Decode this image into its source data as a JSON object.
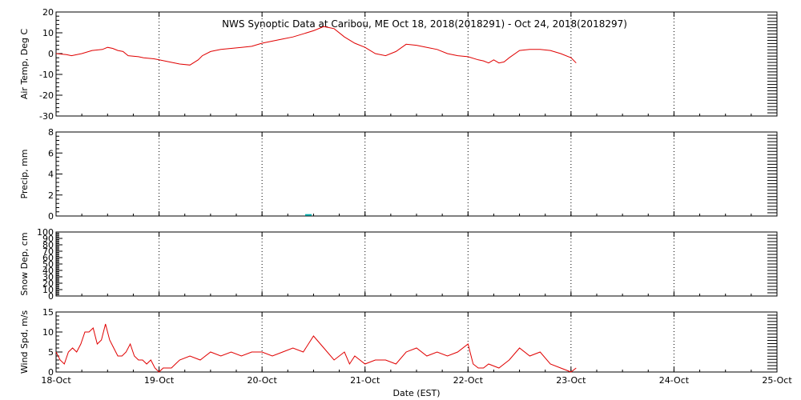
{
  "title": "NWS Synoptic Data at Caribou, ME   Oct 18, 2018(2018291) - Oct 24, 2018(2018297)",
  "xlabel": "Date (EST)",
  "x_ticks": [
    "18-Oct",
    "19-Oct",
    "20-Oct",
    "21-Oct",
    "22-Oct",
    "23-Oct",
    "24-Oct",
    "25-Oct"
  ],
  "colors": {
    "series": "#e00000",
    "precip": "#00b0b0"
  },
  "chart_data": [
    {
      "type": "line",
      "ylabel": "Air Temp, Deg C",
      "ylim": [
        -30,
        20
      ],
      "yticks": [
        -30,
        -20,
        -10,
        0,
        10,
        20
      ],
      "xlim": [
        0,
        7
      ],
      "grid": true,
      "series": [
        {
          "x": [
            0.0,
            0.1,
            0.15,
            0.25,
            0.35,
            0.45,
            0.5,
            0.55,
            0.6,
            0.65,
            0.7,
            0.8,
            0.85,
            0.95,
            1.0,
            1.1,
            1.2,
            1.3,
            1.38,
            1.42,
            1.5,
            1.6,
            1.7,
            1.8,
            1.9,
            2.0,
            2.1,
            2.2,
            2.3,
            2.4,
            2.5,
            2.6,
            2.7,
            2.8,
            2.9,
            3.0,
            3.1,
            3.2,
            3.3,
            3.4,
            3.5,
            3.6,
            3.7,
            3.8,
            3.9,
            4.0,
            4.1,
            4.15,
            4.2,
            4.25,
            4.3,
            4.35,
            4.4,
            4.5,
            4.6,
            4.7,
            4.8,
            4.9,
            5.0,
            5.05
          ],
          "y": [
            0,
            -0.5,
            -1,
            0,
            1.5,
            2,
            3,
            2.5,
            1.5,
            1,
            -1,
            -1.5,
            -2,
            -2.5,
            -3,
            -4,
            -5,
            -5.5,
            -3,
            -1,
            1,
            2,
            2.5,
            3,
            3.5,
            5,
            6,
            7,
            8,
            9.5,
            11,
            13,
            12,
            8,
            5,
            3,
            0,
            -1,
            1,
            4.5,
            4,
            3,
            2,
            0,
            -1,
            -1.5,
            -3,
            -3.5,
            -4.5,
            -3,
            -4.5,
            -4,
            -2,
            1.5,
            2,
            2,
            1.5,
            0,
            -2,
            -4.5
          ]
        }
      ]
    },
    {
      "type": "bar",
      "ylabel": "Precip, mm",
      "ylim": [
        0,
        8
      ],
      "yticks": [
        0,
        2,
        4,
        6,
        8
      ],
      "xlim": [
        0,
        7
      ],
      "grid": true,
      "series": [
        {
          "x": [
            2.45
          ],
          "y": [
            0.1
          ]
        }
      ]
    },
    {
      "type": "line",
      "ylabel": "Snow Dep, cm",
      "ylim": [
        0,
        100
      ],
      "yticks": [
        0,
        10,
        20,
        30,
        40,
        50,
        60,
        70,
        80,
        90,
        100
      ],
      "xlim": [
        0,
        7
      ],
      "grid": true,
      "series": []
    },
    {
      "type": "line",
      "ylabel": "Wind Spd, m/s",
      "ylim": [
        0,
        15
      ],
      "yticks": [
        0,
        5,
        10,
        15
      ],
      "xlim": [
        0,
        7
      ],
      "grid": true,
      "series": [
        {
          "x": [
            0.0,
            0.04,
            0.08,
            0.12,
            0.16,
            0.2,
            0.24,
            0.28,
            0.32,
            0.36,
            0.4,
            0.44,
            0.48,
            0.52,
            0.56,
            0.6,
            0.64,
            0.68,
            0.72,
            0.76,
            0.8,
            0.84,
            0.88,
            0.92,
            0.96,
            1.0,
            1.04,
            1.08,
            1.12,
            1.16,
            1.2,
            1.3,
            1.4,
            1.5,
            1.6,
            1.7,
            1.8,
            1.9,
            2.0,
            2.1,
            2.2,
            2.3,
            2.4,
            2.5,
            2.6,
            2.7,
            2.8,
            2.85,
            2.9,
            2.95,
            3.0,
            3.1,
            3.2,
            3.3,
            3.4,
            3.5,
            3.6,
            3.7,
            3.8,
            3.9,
            4.0,
            4.05,
            4.1,
            4.15,
            4.2,
            4.3,
            4.4,
            4.5,
            4.6,
            4.7,
            4.8,
            4.9,
            5.0,
            5.05
          ],
          "y": [
            5,
            3,
            2,
            5,
            6,
            5,
            7,
            10,
            10,
            11,
            7,
            8,
            12,
            8,
            6,
            4,
            4,
            5,
            7,
            4,
            3,
            3,
            2,
            3,
            1,
            0,
            1,
            1,
            1,
            2,
            3,
            4,
            3,
            5,
            4,
            5,
            4,
            5,
            5,
            4,
            5,
            6,
            5,
            9,
            6,
            3,
            5,
            2,
            4,
            3,
            2,
            3,
            3,
            2,
            5,
            6,
            4,
            5,
            4,
            5,
            7,
            2,
            1,
            1,
            2,
            1,
            3,
            6,
            4,
            5,
            2,
            1,
            0,
            1
          ]
        }
      ]
    }
  ]
}
